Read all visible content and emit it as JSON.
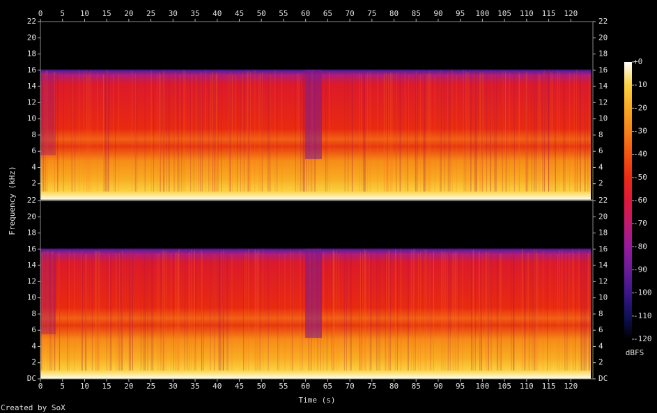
{
  "chart_data": {
    "type": "spectrogram",
    "x_label": "Time (s)",
    "y_label": "Frequency (kHz)",
    "xlim": [
      0,
      125
    ],
    "xticks": [
      0,
      5,
      10,
      15,
      20,
      25,
      30,
      35,
      40,
      45,
      50,
      55,
      60,
      65,
      70,
      75,
      80,
      85,
      90,
      95,
      100,
      105,
      110,
      115,
      120
    ],
    "channels": [
      {
        "ylim": [
          0,
          22
        ],
        "yticks": [
          2,
          4,
          6,
          8,
          10,
          12,
          14,
          16,
          18,
          20,
          22
        ]
      },
      {
        "ylim": [
          0,
          22
        ],
        "yticks": [
          {
            "value": 0,
            "label": "DC"
          },
          2,
          4,
          6,
          8,
          10,
          12,
          14,
          16,
          18,
          20,
          22
        ]
      }
    ],
    "colorbar": {
      "lim": [
        -120,
        0
      ],
      "label": "dBFS",
      "ticks": [
        {
          "value": 0,
          "label": "+0"
        },
        -10,
        -20,
        -30,
        -40,
        -50,
        -60,
        -70,
        -80,
        -90,
        -100,
        -110,
        -120
      ],
      "colormap": [
        "#000000",
        "#10105a",
        "#3a168a",
        "#6a1c9a",
        "#981aa0",
        "#c01a70",
        "#e0183a",
        "#ee2a12",
        "#f45410",
        "#f88018",
        "#faa820",
        "#fcd040",
        "#ffffff"
      ]
    }
  },
  "footer": "Created by SoX"
}
